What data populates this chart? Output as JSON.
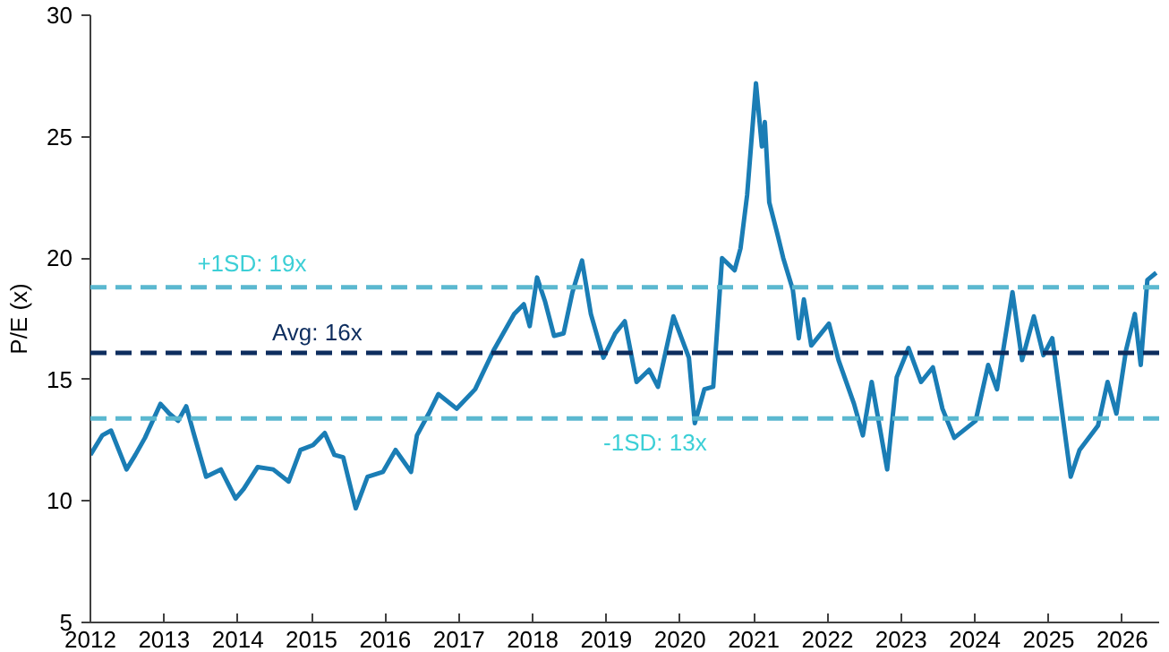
{
  "chart_data": {
    "type": "line",
    "ylabel": "P/E (x)",
    "xlim": [
      2012,
      2026.5
    ],
    "xticks": [
      {
        "value": 2012,
        "label": "2012"
      },
      {
        "value": 2013,
        "label": "2013"
      },
      {
        "value": 2014,
        "label": "2014"
      },
      {
        "value": 2015,
        "label": "2015"
      },
      {
        "value": 2016,
        "label": "2016"
      },
      {
        "value": 2017,
        "label": "2017"
      },
      {
        "value": 2018,
        "label": "2018"
      },
      {
        "value": 2019,
        "label": "2019"
      },
      {
        "value": 2020,
        "label": "2020"
      },
      {
        "value": 2021,
        "label": "2021"
      },
      {
        "value": 2022,
        "label": "2022"
      },
      {
        "value": 2023,
        "label": "2023"
      },
      {
        "value": 2024,
        "label": "2024"
      },
      {
        "value": 2025,
        "label": "2025"
      },
      {
        "value": 2026,
        "label": "2026"
      }
    ],
    "ylim": [
      5,
      30
    ],
    "yticks": [
      5,
      10,
      15,
      20,
      25,
      30
    ],
    "grid": false,
    "x": [
      2012.0,
      2012.16,
      2012.28,
      2012.49,
      2012.61,
      2012.74,
      2012.95,
      2013.07,
      2013.19,
      2013.3,
      2013.4,
      2013.57,
      2013.77,
      2013.97,
      2014.08,
      2014.27,
      2014.48,
      2014.69,
      2014.85,
      2015.02,
      2015.18,
      2015.31,
      2015.43,
      2015.6,
      2015.76,
      2015.97,
      2016.14,
      2016.35,
      2016.43,
      2016.59,
      2016.72,
      2016.97,
      2017.22,
      2017.47,
      2017.75,
      2017.88,
      2017.96,
      2018.06,
      2018.17,
      2018.29,
      2018.42,
      2018.54,
      2018.67,
      2018.79,
      2018.96,
      2019.12,
      2019.25,
      2019.41,
      2019.58,
      2019.7,
      2019.91,
      2020.12,
      2020.2,
      2020.33,
      2020.45,
      2020.57,
      2020.74,
      2020.82,
      2020.91,
      2021.03,
      2021.11,
      2021.15,
      2021.21,
      2021.32,
      2021.4,
      2021.53,
      2021.61,
      2021.68,
      2021.78,
      2022.02,
      2022.15,
      2022.36,
      2022.48,
      2022.6,
      2022.81,
      2022.94,
      2023.1,
      2023.27,
      2023.43,
      2023.56,
      2023.72,
      2024.01,
      2024.18,
      2024.3,
      2024.51,
      2024.64,
      2024.8,
      2024.93,
      2025.05,
      2025.3,
      2025.42,
      2025.67,
      2025.8,
      2025.92,
      2026.05,
      2026.17,
      2026.25,
      2026.34,
      2026.46
    ],
    "series": [
      {
        "color": "#1a7db5",
        "values": [
          11.9,
          12.7,
          12.9,
          11.3,
          11.9,
          12.6,
          14.0,
          13.6,
          13.3,
          13.9,
          12.8,
          11.0,
          11.3,
          10.1,
          10.5,
          11.4,
          11.3,
          10.8,
          12.1,
          12.3,
          12.8,
          11.9,
          11.8,
          9.7,
          11.0,
          11.2,
          12.1,
          11.2,
          12.7,
          13.6,
          14.4,
          13.8,
          14.6,
          16.2,
          17.7,
          18.1,
          17.2,
          19.2,
          18.2,
          16.8,
          16.9,
          18.6,
          19.9,
          17.7,
          15.9,
          16.9,
          17.4,
          14.9,
          15.4,
          14.7,
          17.6,
          15.9,
          13.2,
          14.6,
          14.7,
          20.0,
          19.5,
          20.4,
          22.6,
          27.2,
          24.6,
          25.6,
          22.3,
          21.0,
          20.0,
          18.7,
          16.7,
          18.3,
          16.4,
          17.3,
          15.8,
          14.0,
          12.7,
          14.9,
          11.3,
          15.1,
          16.3,
          14.9,
          15.5,
          13.8,
          12.6,
          13.3,
          15.6,
          14.6,
          18.6,
          15.8,
          17.6,
          16.0,
          16.7,
          11.0,
          12.1,
          13.1,
          14.9,
          13.6,
          16.2,
          17.7,
          15.6,
          19.1,
          19.4
        ]
      }
    ],
    "ref_lines": [
      {
        "axis": "y",
        "value": 18.8,
        "label": "+1SD: 19x",
        "color": "#5bb8d0",
        "line_style": "dashed"
      },
      {
        "axis": "y",
        "value": 16.1,
        "label": "Avg: 16x",
        "color": "#0d2d5e",
        "line_style": "dashed"
      },
      {
        "axis": "y",
        "value": 13.4,
        "label": "-1SD: 13x",
        "color": "#5bb8d0",
        "line_style": "dashed"
      }
    ]
  }
}
